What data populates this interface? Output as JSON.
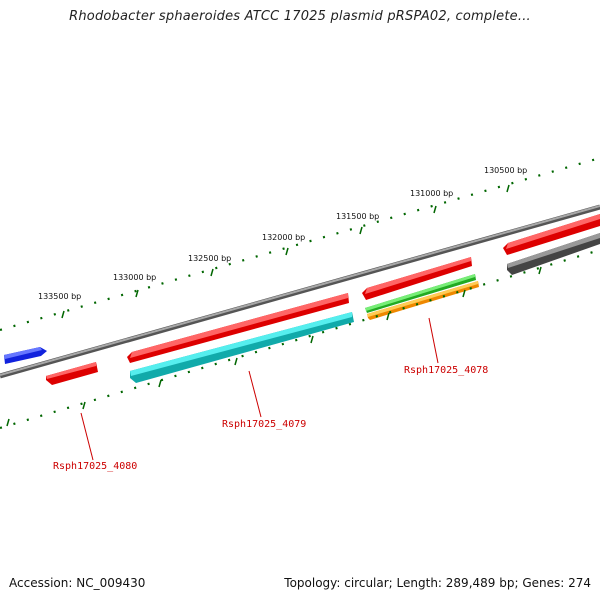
{
  "title": "Rhodobacter sphaeroides ATCC 17025 plasmid pRSPA02, complete...",
  "footer": {
    "accession": "Accession: NC_009430",
    "summary": "Topology: circular; Length: 289,489 bp; Genes: 274"
  },
  "scale": {
    "labels": [
      "133500 bp",
      "133000 bp",
      "132500 bp",
      "132000 bp",
      "131500 bp",
      "131000 bp",
      "130500 bp"
    ]
  },
  "genes": [
    {
      "label": "Rsph17025_4078",
      "color": "#cc0000"
    },
    {
      "label": "Rsph17025_4079",
      "color": "#cc0000"
    },
    {
      "label": "Rsph17025_4080",
      "color": "#cc0000"
    }
  ],
  "colors": {
    "backbone": "#808080",
    "red": "#ee1111",
    "blue": "#1122dd",
    "cyan": "#22cccc",
    "green": "#33bb33",
    "orange": "#ff9911",
    "gray": "#555555",
    "tick": "#006600"
  }
}
